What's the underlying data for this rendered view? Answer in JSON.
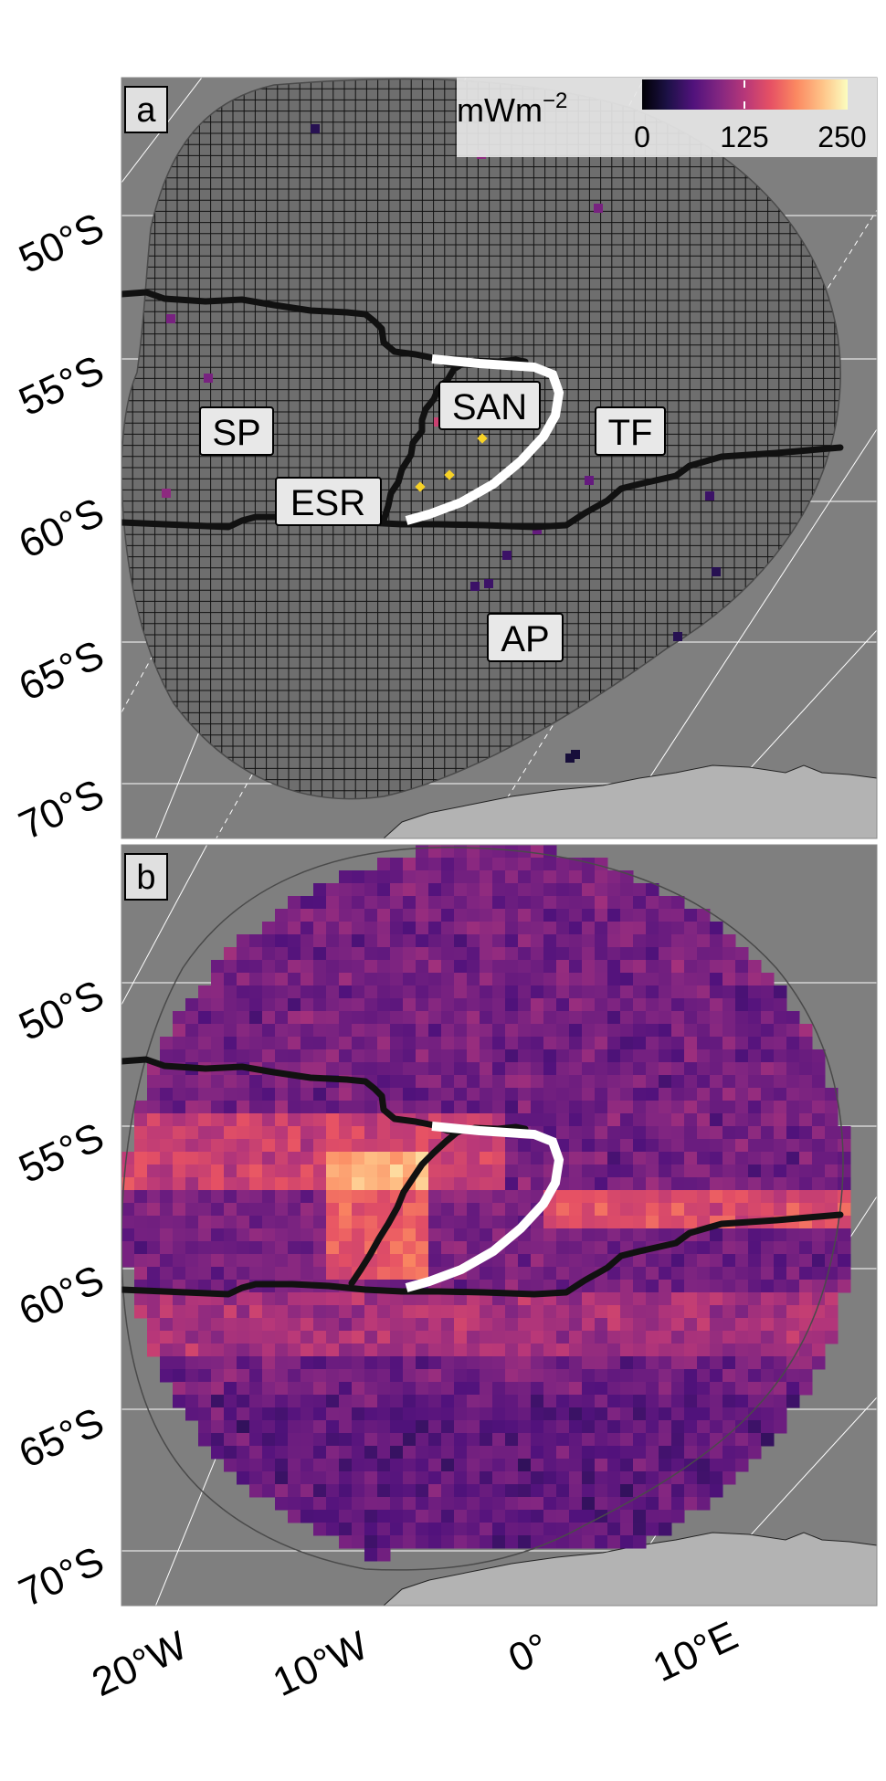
{
  "panels": [
    {
      "id": "a",
      "label": "a",
      "type": "observation-grid"
    },
    {
      "id": "b",
      "label": "b",
      "type": "heat-flow-field"
    }
  ],
  "lat_labels": [
    "50°S",
    "55°S",
    "60°S",
    "65°S",
    "70°S"
  ],
  "lon_labels": [
    "20°W",
    "10°W",
    "0°",
    "10°E"
  ],
  "region_labels": [
    {
      "text": "SP",
      "name": "region-label-sp"
    },
    {
      "text": "SAN",
      "name": "region-label-san"
    },
    {
      "text": "TF",
      "name": "region-label-tf"
    },
    {
      "text": "ESR",
      "name": "region-label-esr"
    },
    {
      "text": "AP",
      "name": "region-label-ap"
    }
  ],
  "colorbar": {
    "unit_prefix": "mWm",
    "unit_exponent": "−2",
    "ticks": [
      "0",
      "125",
      "250"
    ],
    "range": [
      0,
      250
    ],
    "colormap": "magma",
    "stops": [
      "#000004",
      "#1d1147",
      "#51127c",
      "#822681",
      "#b73779",
      "#e65164",
      "#fb8861",
      "#fec287",
      "#fcfdbf"
    ]
  },
  "colors": {
    "land": "#7f7f7f",
    "antarctica": "#b3b3b3",
    "boundary": "#111111",
    "slab": "#ffffff",
    "graticule": "#ffffff",
    "domain_outline": "#555555"
  }
}
